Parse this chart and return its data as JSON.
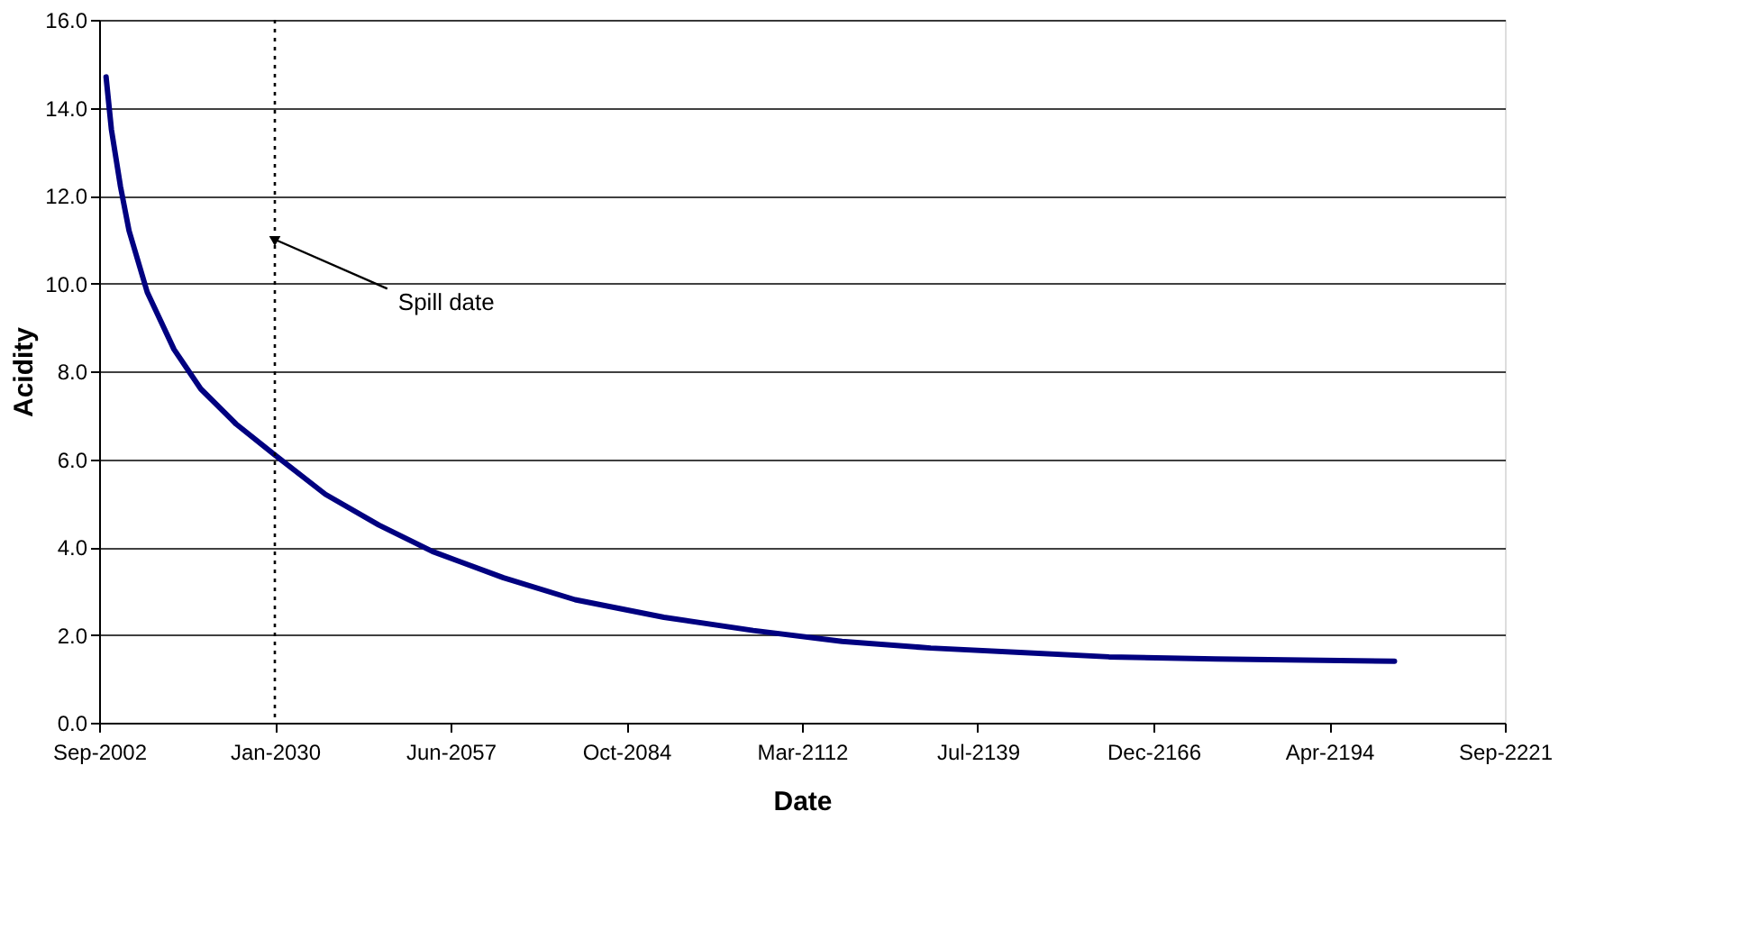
{
  "chart_data": {
    "type": "line",
    "xlabel": "Date",
    "ylabel": "Acidity",
    "x": [
      "2003-10",
      "2004-08",
      "2006-01",
      "2007-05",
      "2010-03",
      "2014-05",
      "2018-07",
      "2024-01",
      "2030-01",
      "2037-12",
      "2046-04",
      "2054-08",
      "2065-09",
      "2076-11",
      "2090-09",
      "2104-08",
      "2118-06",
      "2132-04",
      "2146-03",
      "2160-01",
      "2176-09",
      "2204-07"
    ],
    "series": [
      {
        "color": "#000080",
        "values": [
          14.7,
          13.5,
          12.2,
          11.2,
          9.8,
          8.5,
          7.6,
          6.8,
          6.1,
          5.2,
          4.5,
          3.9,
          3.3,
          2.8,
          2.4,
          2.1,
          1.85,
          1.7,
          1.6,
          1.5,
          1.45,
          1.4
        ]
      }
    ],
    "xlim": [
      "2002-09-01",
      "2221-09-13"
    ],
    "xticks": [
      {
        "value": "2002-09-01",
        "label": "Sep-2002"
      },
      {
        "value": "2030-01-17",
        "label": "Jan-2030"
      },
      {
        "value": "2057-06-04",
        "label": "Jun-2057"
      },
      {
        "value": "2084-10-20",
        "label": "Oct-2084"
      },
      {
        "value": "2112-03-07",
        "label": "Mar-2112"
      },
      {
        "value": "2139-07-24",
        "label": "Jul-2139"
      },
      {
        "value": "2166-12-10",
        "label": "Dec-2166"
      },
      {
        "value": "2194-04-27",
        "label": "Apr-2194"
      },
      {
        "value": "2221-09-13",
        "label": "Sep-2221"
      }
    ],
    "ylim": [
      0,
      16
    ],
    "yticks": [
      {
        "value": 0,
        "label": "0.0"
      },
      {
        "value": 2,
        "label": "2.0"
      },
      {
        "value": 4,
        "label": "4.0"
      },
      {
        "value": 6,
        "label": "6.0"
      },
      {
        "value": 8,
        "label": "8.0"
      },
      {
        "value": 10,
        "label": "10.0"
      },
      {
        "value": 12,
        "label": "12.0"
      },
      {
        "value": 14,
        "label": "14.0"
      },
      {
        "value": 16,
        "label": "16.0"
      }
    ],
    "ref_lines": [
      {
        "axis": "x",
        "value": "2030-01-17",
        "color": "#000000",
        "line_style": "dotted"
      }
    ],
    "annotations": [
      {
        "text": "Spill date",
        "x": "2030-01-17",
        "y": 11.0
      }
    ],
    "grid": "y",
    "marker": "none",
    "line_style": "solid"
  }
}
